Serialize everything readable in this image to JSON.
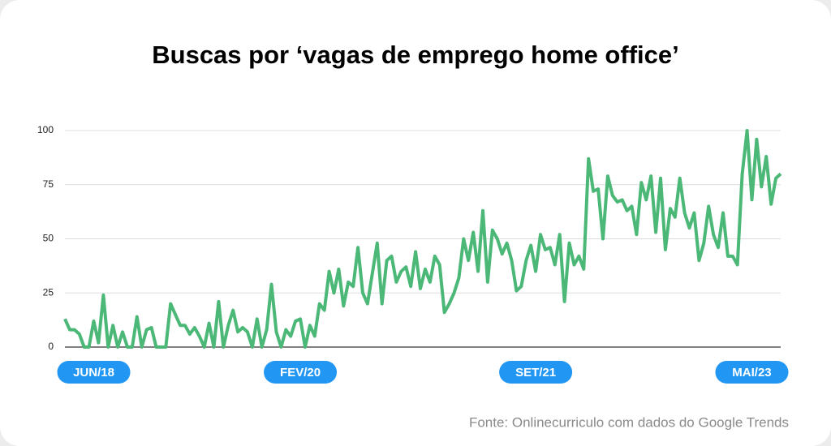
{
  "chart_data": {
    "type": "line",
    "title": "Buscas por ‘vagas de emprego home office’",
    "source": "Fonte: Onlinecurriculo com dados do Google Trends",
    "color": "#4cb878",
    "label_color": "#2196f3",
    "ylim": [
      0,
      100
    ],
    "yticks": [
      0,
      25,
      50,
      75,
      100
    ],
    "grid": true,
    "categories": [
      null,
      null,
      null,
      null,
      null,
      null,
      "JUN/18",
      null,
      null,
      null,
      null,
      null,
      null,
      null,
      null,
      null,
      null,
      null,
      null,
      null,
      null,
      null,
      null,
      null,
      null,
      null,
      null,
      null,
      null,
      null,
      null,
      null,
      null,
      null,
      null,
      null,
      null,
      null,
      null,
      null,
      null,
      null,
      null,
      null,
      null,
      null,
      null,
      null,
      null,
      "FEV/20",
      null,
      null,
      null,
      null,
      null,
      null,
      null,
      null,
      null,
      null,
      null,
      null,
      null,
      null,
      null,
      null,
      null,
      null,
      null,
      null,
      null,
      null,
      null,
      null,
      null,
      null,
      null,
      null,
      null,
      null,
      null,
      null,
      null,
      null,
      null,
      null,
      null,
      null,
      null,
      null,
      null,
      null,
      null,
      null,
      null,
      null,
      null,
      null,
      "SET/21",
      null,
      null,
      null,
      null,
      null,
      null,
      null,
      null,
      null,
      null,
      null,
      null,
      null,
      null,
      null,
      null,
      null,
      null,
      null,
      null,
      null,
      null,
      null,
      null,
      null,
      null,
      null,
      null,
      null,
      null,
      null,
      null,
      null,
      null,
      null,
      null,
      null,
      null,
      null,
      null,
      null,
      null,
      null,
      null,
      "MAI/23",
      null,
      null,
      null,
      null,
      null,
      null
    ],
    "values": [
      13,
      8,
      8,
      6,
      0,
      0,
      12,
      2,
      24,
      0,
      10,
      0,
      7,
      0,
      0,
      14,
      0,
      8,
      9,
      0,
      0,
      0,
      20,
      15,
      10,
      10,
      6,
      9,
      5,
      0,
      11,
      0,
      21,
      0,
      10,
      17,
      7,
      9,
      7,
      0,
      13,
      0,
      8,
      29,
      7,
      0,
      8,
      5,
      12,
      13,
      0,
      10,
      5,
      20,
      17,
      35,
      25,
      36,
      19,
      30,
      28,
      46,
      25,
      20,
      34,
      48,
      20,
      40,
      42,
      30,
      35,
      37,
      28,
      44,
      27,
      36,
      30,
      42,
      38,
      16,
      20,
      25,
      32,
      50,
      40,
      53,
      35,
      63,
      30,
      54,
      50,
      43,
      48,
      40,
      26,
      28,
      40,
      47,
      35,
      52,
      45,
      46,
      38,
      52,
      21,
      48,
      38,
      42,
      36,
      87,
      72,
      73,
      50,
      79,
      70,
      67,
      68,
      63,
      65,
      52,
      76,
      68,
      79,
      53,
      78,
      45,
      64,
      60,
      78,
      62,
      55,
      62,
      40,
      48,
      65,
      52,
      46,
      62,
      42,
      42,
      38,
      80,
      100,
      68,
      96,
      74,
      88,
      66,
      78,
      80
    ]
  }
}
